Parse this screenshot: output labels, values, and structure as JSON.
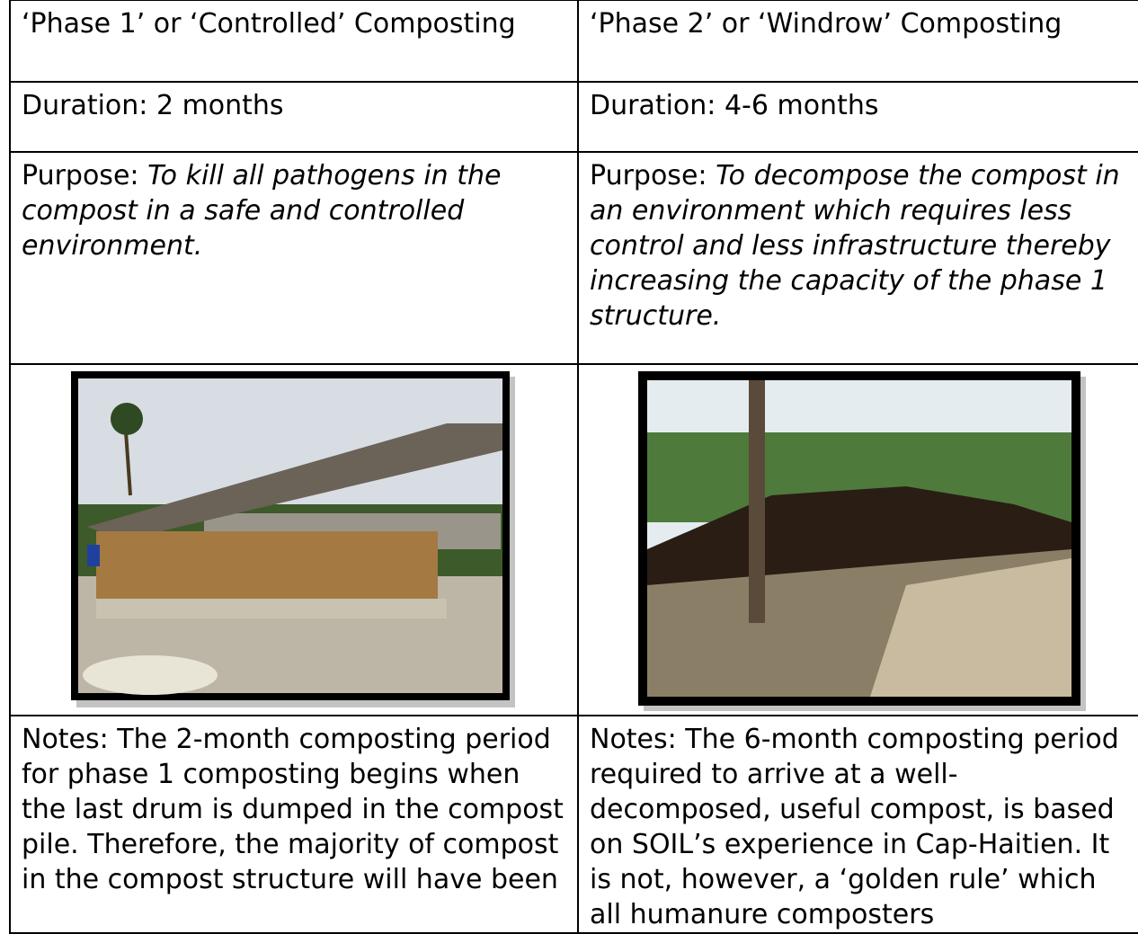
{
  "table": {
    "rows": [
      [
        "‘Phase 1’ or ‘Controlled’ Composting",
        "‘Phase 2’ or ‘Windrow’ Composting"
      ],
      [
        "Duration: 2 months",
        "Duration: 4-6 months"
      ],
      [
        {
          "label": "Purpose:",
          "text": "To kill all pathogens in the compost in a safe and controlled environment."
        },
        {
          "label": "Purpose:",
          "text": "To decompose the compost in an environment which requires less control and less infrastructure thereby increasing the capacity of the phase 1 structure."
        }
      ],
      [
        "Notes: The 2-month composting period for phase 1 composting begins when the last drum is dumped in the compost pile. Therefore, the majority of compost in the compost structure will have been",
        "Notes: The 6-month composting period required to arrive at a well-decomposed, useful compost, is based on SOIL’s experience in Cap-Haitien. It is not, however, a ‘golden rule’ which all humanure composters"
      ]
    ]
  }
}
